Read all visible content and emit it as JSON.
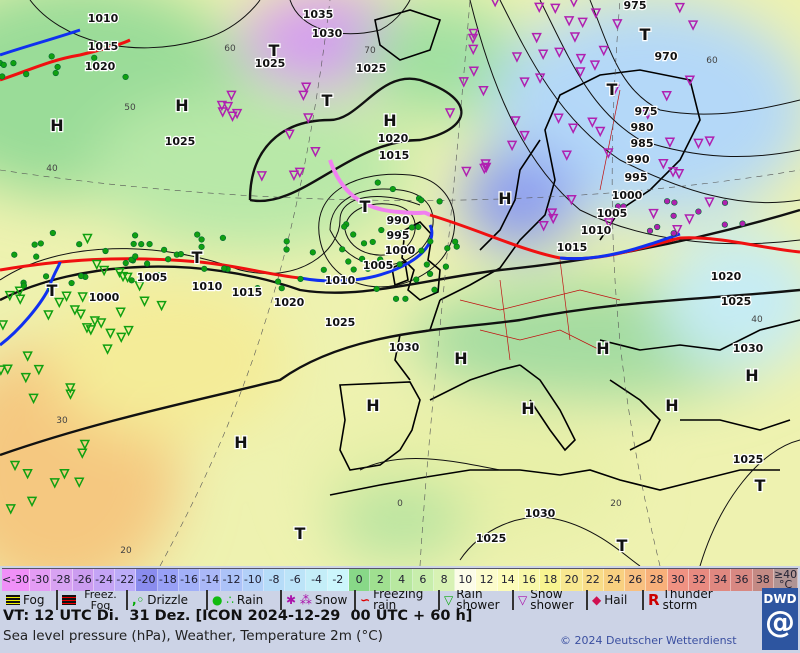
{
  "map": {
    "highs_label": "H",
    "lows_label": "T",
    "pressure_labels": [
      "1010",
      "1015",
      "1020",
      "1035",
      "1030",
      "1025",
      "1025",
      "1025",
      "1020",
      "1015",
      "990",
      "995",
      "1000",
      "1005",
      "1010",
      "1005",
      "1010",
      "1015",
      "1020",
      "1000",
      "1025",
      "1030",
      "1030",
      "1025",
      "1020",
      "1015",
      "1010",
      "1005",
      "1000",
      "995",
      "990",
      "985",
      "980",
      "975",
      "970",
      "975",
      "1025",
      "1030",
      "1025"
    ],
    "temp_labels": [
      "60",
      "70",
      "50",
      "40",
      "30",
      "20",
      "0",
      "20",
      "40",
      "60"
    ],
    "weather_dot_color": "#10a010",
    "colors": {
      "cold_front": "#1030f0",
      "warm_front": "#f01010",
      "occlusion": "#f080f0",
      "isobar": "#111111"
    }
  },
  "scale": {
    "labels": [
      "<-30",
      "-30",
      "-28",
      "-26",
      "-24",
      "-22",
      "-20",
      "-18",
      "-16",
      "-14",
      "-12",
      "-10",
      "-8",
      "-6",
      "-4",
      "-2",
      "0",
      "2",
      "4",
      "6",
      "8",
      "10",
      "12",
      "14",
      "16",
      "18",
      "20",
      "22",
      "24",
      "26",
      "28",
      "30",
      "32",
      "34",
      "36",
      "38",
      "≥40 °C"
    ],
    "colors": [
      "#f090f8",
      "#e49cf4",
      "#d8a2f2",
      "#cc9cf0",
      "#c4a4f6",
      "#bcacf8",
      "#8a8cee",
      "#98a0f6",
      "#a2b0f8",
      "#aab8f8",
      "#acc2f8",
      "#b2d0f8",
      "#b6dcf8",
      "#bce4f8",
      "#c4eef8",
      "#ccf6fc",
      "#88d888",
      "#a0e090",
      "#b8e8a0",
      "#c8eeac",
      "#d8f2b4",
      "#fcfce8",
      "#fcfccc",
      "#fcfcb8",
      "#f8f8a8",
      "#f8f490",
      "#f8e890",
      "#f8dc88",
      "#f8d080",
      "#f8c080",
      "#f8b07a",
      "#f09282",
      "#e88a80",
      "#e08880",
      "#d88882",
      "#c48a84",
      "#b09494"
    ]
  },
  "weather_legend": [
    {
      "label": "Fog",
      "icon": "fog-icon"
    },
    {
      "label": "Freez. Fog",
      "icon": "freezing-fog-icon"
    },
    {
      "label": "Drizzle",
      "icon": "drizzle-icon"
    },
    {
      "label": "Rain",
      "icon": "rain-icon"
    },
    {
      "label": "Snow",
      "icon": "snow-icon"
    },
    {
      "label": "Freezing rain",
      "icon": "freezing-rain-icon"
    },
    {
      "label": "Rain shower",
      "icon": "rain-shower-icon"
    },
    {
      "label": "Snow shower",
      "icon": "snow-shower-icon"
    },
    {
      "label": "Hail",
      "icon": "hail-icon"
    },
    {
      "label": "Thunder storm",
      "icon": "thunderstorm-icon"
    }
  ],
  "footer": {
    "valid_time": "VT: 12 UTC Di.  31 Dez. [ICON 2024-12-29  00 UTC + 60 h]",
    "subtitle": "Sea level pressure (hPa), Weather, Temperature 2m (°C)",
    "copyright": "© 2024 Deutscher Wetterdienst",
    "logo_text": "DWD"
  }
}
